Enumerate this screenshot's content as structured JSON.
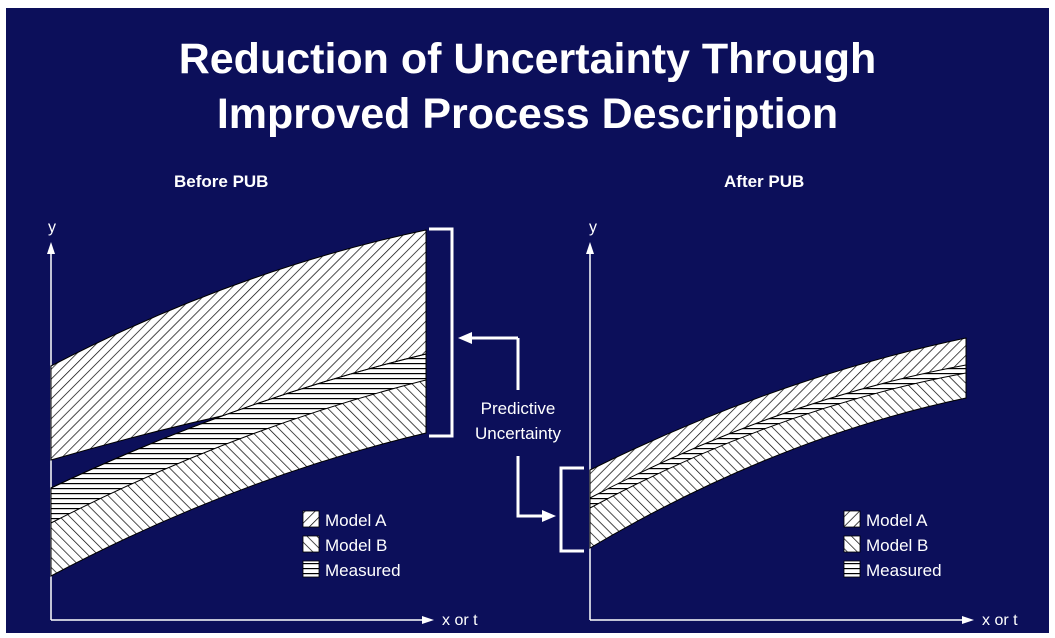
{
  "title": {
    "line1": "Reduction of Uncertainty Through",
    "line2": "Improved Process Description"
  },
  "panels": {
    "before": {
      "title": "Before PUB",
      "y_axis": "y",
      "x_axis": "x or t"
    },
    "after": {
      "title": "After PUB",
      "y_axis": "y",
      "x_axis": "x or t"
    }
  },
  "annotation": {
    "line1": "Predictive",
    "line2": "Uncertainty"
  },
  "legend": {
    "model_a": "Model A",
    "model_b": "Model B",
    "measured": "Measured"
  },
  "colors": {
    "background": "#0c0f5a",
    "foreground": "#ffffff"
  }
}
